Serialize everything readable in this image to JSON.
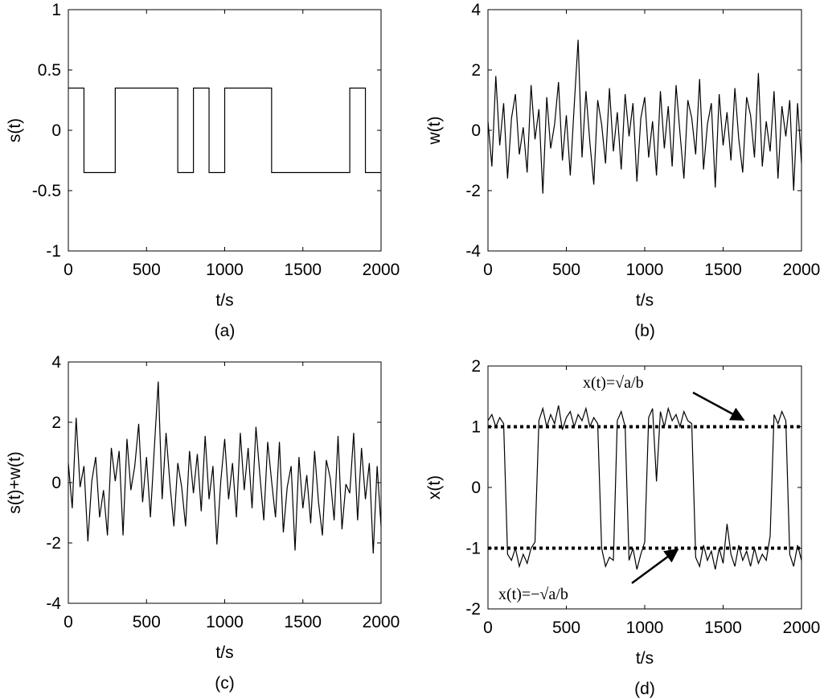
{
  "chart_data": [
    {
      "type": "line",
      "caption": "(a)",
      "xlabel": "t/s",
      "ylabel": "s(t)",
      "color": "#000000",
      "x": [
        0,
        100,
        100,
        300,
        300,
        700,
        700,
        800,
        800,
        900,
        900,
        1000,
        1000,
        1300,
        1300,
        1800,
        1800,
        1900,
        1900,
        2000
      ],
      "values": [
        0.35,
        0.35,
        -0.35,
        -0.35,
        0.35,
        0.35,
        -0.35,
        -0.35,
        0.35,
        0.35,
        -0.35,
        -0.35,
        0.35,
        0.35,
        -0.35,
        -0.35,
        0.35,
        0.35,
        -0.35,
        -0.35
      ],
      "xlim": [
        0,
        2000
      ],
      "ylim": [
        -1,
        1
      ],
      "xticks": [
        0,
        500,
        1000,
        1500,
        2000
      ],
      "yticks": [
        -1,
        -0.5,
        0,
        0.5,
        1
      ]
    },
    {
      "type": "line",
      "caption": "(b)",
      "xlabel": "t/s",
      "ylabel": "w(t)",
      "color": "#000000",
      "x": [
        0,
        25,
        50,
        75,
        100,
        125,
        150,
        175,
        200,
        225,
        250,
        275,
        300,
        325,
        350,
        375,
        400,
        425,
        450,
        475,
        500,
        525,
        550,
        575,
        600,
        625,
        650,
        675,
        700,
        725,
        750,
        775,
        800,
        825,
        850,
        875,
        900,
        925,
        950,
        975,
        1000,
        1025,
        1050,
        1075,
        1100,
        1125,
        1150,
        1175,
        1200,
        1225,
        1250,
        1275,
        1300,
        1325,
        1350,
        1375,
        1400,
        1425,
        1450,
        1475,
        1500,
        1525,
        1550,
        1575,
        1600,
        1625,
        1650,
        1675,
        1700,
        1725,
        1750,
        1775,
        1800,
        1825,
        1850,
        1875,
        1900,
        1925,
        1950,
        1975,
        2000
      ],
      "values": [
        0.3,
        -1.2,
        1.8,
        -0.5,
        0.9,
        -1.6,
        0.4,
        1.2,
        -0.8,
        0.1,
        -1.4,
        1.5,
        -0.3,
        0.7,
        -2.1,
        1.1,
        -0.6,
        0.2,
        1.6,
        -1.0,
        0.5,
        -1.5,
        0.8,
        3.0,
        -0.9,
        1.3,
        -0.4,
        -1.8,
        1.0,
        0.2,
        -1.1,
        1.4,
        -0.7,
        0.6,
        -1.3,
        1.2,
        -0.2,
        0.9,
        -1.7,
        0.4,
        1.1,
        -0.9,
        0.3,
        -1.5,
        1.3,
        -0.6,
        0.8,
        -1.2,
        1.5,
        -0.1,
        -1.6,
        1.0,
        0.4,
        -0.8,
        1.7,
        -1.3,
        0.2,
        0.9,
        -1.9,
        1.2,
        -0.5,
        0.6,
        -1.0,
        1.4,
        -0.3,
        -1.4,
        1.1,
        0.5,
        -0.9,
        1.9,
        -1.2,
        0.3,
        -0.7,
        1.3,
        -1.6,
        0.8,
        -0.2,
        1.0,
        -2.0,
        0.9,
        -1.1
      ],
      "xlim": [
        0,
        2000
      ],
      "ylim": [
        -4,
        4
      ],
      "xticks": [
        0,
        500,
        1000,
        1500,
        2000
      ],
      "yticks": [
        -4,
        -2,
        0,
        2,
        4
      ]
    },
    {
      "type": "line",
      "caption": "(c)",
      "xlabel": "t/s",
      "ylabel": "s(t)+w(t)",
      "color": "#000000",
      "x": [
        0,
        25,
        50,
        75,
        100,
        125,
        150,
        175,
        200,
        225,
        250,
        275,
        300,
        325,
        350,
        375,
        400,
        425,
        450,
        475,
        500,
        525,
        550,
        575,
        600,
        625,
        650,
        675,
        700,
        725,
        750,
        775,
        800,
        825,
        850,
        875,
        900,
        925,
        950,
        975,
        1000,
        1025,
        1050,
        1075,
        1100,
        1125,
        1150,
        1175,
        1200,
        1225,
        1250,
        1275,
        1300,
        1325,
        1350,
        1375,
        1400,
        1425,
        1450,
        1475,
        1500,
        1525,
        1550,
        1575,
        1600,
        1625,
        1650,
        1675,
        1700,
        1725,
        1750,
        1775,
        1800,
        1825,
        1850,
        1875,
        1900,
        1925,
        1950,
        1975,
        2000
      ],
      "values": [
        0.65,
        -0.85,
        2.15,
        -0.15,
        0.55,
        -1.95,
        0.05,
        0.85,
        -1.15,
        -0.25,
        -1.75,
        1.15,
        0.05,
        1.05,
        -1.75,
        1.45,
        -0.25,
        0.55,
        1.95,
        -0.65,
        0.85,
        -1.15,
        1.15,
        3.35,
        -0.55,
        1.65,
        -0.05,
        -1.45,
        0.65,
        -0.15,
        -1.45,
        1.05,
        -0.35,
        0.95,
        -0.95,
        1.55,
        -0.55,
        0.55,
        -2.05,
        0.05,
        1.45,
        -0.55,
        0.65,
        -1.15,
        1.65,
        -0.25,
        1.15,
        -0.85,
        1.85,
        0.25,
        -1.25,
        1.35,
        0.05,
        -1.15,
        1.35,
        -1.65,
        -0.15,
        0.55,
        -2.25,
        0.85,
        -0.85,
        0.25,
        -1.35,
        1.05,
        -0.65,
        -1.75,
        0.75,
        0.15,
        -1.25,
        1.55,
        -1.55,
        -0.05,
        -0.35,
        1.65,
        -1.25,
        1.15,
        -0.55,
        0.65,
        -2.35,
        0.55,
        -1.45
      ],
      "xlim": [
        0,
        2000
      ],
      "ylim": [
        -4,
        4
      ],
      "xticks": [
        0,
        500,
        1000,
        1500,
        2000
      ],
      "yticks": [
        -4,
        -2,
        0,
        2,
        4
      ]
    },
    {
      "type": "line",
      "caption": "(d)",
      "xlabel": "t/s",
      "ylabel": "x(t)",
      "color": "#000000",
      "x": [
        0,
        25,
        50,
        75,
        100,
        125,
        150,
        175,
        200,
        225,
        250,
        275,
        300,
        325,
        350,
        375,
        400,
        425,
        450,
        475,
        500,
        525,
        550,
        575,
        600,
        625,
        650,
        675,
        700,
        725,
        750,
        775,
        800,
        825,
        850,
        875,
        900,
        925,
        950,
        975,
        1000,
        1025,
        1050,
        1075,
        1100,
        1125,
        1150,
        1175,
        1200,
        1225,
        1250,
        1275,
        1300,
        1325,
        1350,
        1375,
        1400,
        1425,
        1450,
        1475,
        1500,
        1525,
        1550,
        1575,
        1600,
        1625,
        1650,
        1675,
        1700,
        1725,
        1750,
        1775,
        1800,
        1825,
        1850,
        1875,
        1900,
        1925,
        1950,
        1975,
        2000
      ],
      "values": [
        1.1,
        1.2,
        1.0,
        1.15,
        1.05,
        -1.1,
        -1.2,
        -1.0,
        -1.3,
        -1.1,
        -1.25,
        -1.0,
        -0.9,
        1.1,
        1.3,
        1.0,
        1.2,
        1.05,
        1.35,
        0.95,
        1.15,
        1.25,
        1.0,
        1.2,
        1.1,
        1.3,
        1.0,
        1.15,
        1.05,
        -1.0,
        -1.3,
        -1.15,
        -1.2,
        1.1,
        1.25,
        1.0,
        -1.2,
        -1.0,
        -1.35,
        -1.1,
        -0.9,
        1.15,
        1.3,
        0.1,
        1.25,
        1.0,
        1.3,
        1.1,
        1.2,
        1.0,
        1.25,
        1.1,
        1.05,
        -1.15,
        -1.3,
        -0.95,
        -1.2,
        -1.05,
        -1.35,
        -1.0,
        -1.25,
        -0.6,
        -1.1,
        -1.3,
        -0.95,
        -1.2,
        -1.05,
        -1.3,
        -1.0,
        -1.25,
        -1.1,
        -1.2,
        -0.8,
        1.2,
        1.05,
        1.25,
        1.1,
        -1.1,
        -1.3,
        -0.95,
        -1.2
      ],
      "xlim": [
        0,
        2000
      ],
      "ylim": [
        -2,
        2
      ],
      "xticks": [
        0,
        500,
        1000,
        1500,
        2000
      ],
      "yticks": [
        -2,
        -1,
        0,
        1,
        2
      ],
      "hlines": [
        1,
        -1
      ],
      "annotations": [
        "x(t)=√a/b",
        "x(t)=−√a/b"
      ]
    }
  ]
}
